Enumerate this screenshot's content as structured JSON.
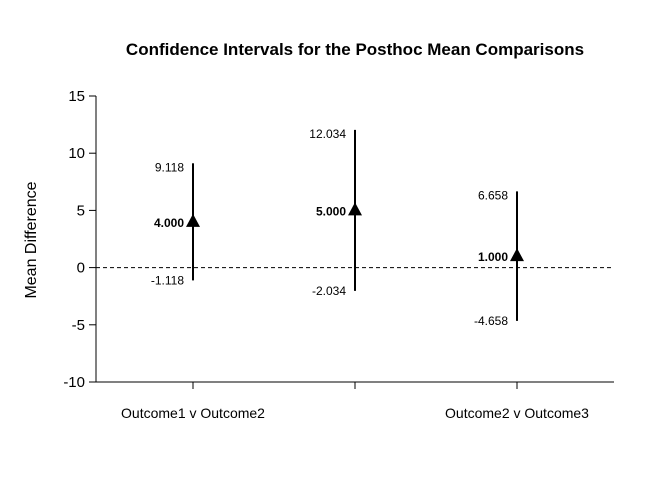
{
  "chart_data": {
    "type": "scatter",
    "title": "Confidence Intervals for the Posthoc Mean Comparisons",
    "xlabel": "",
    "ylabel": "Mean Difference",
    "ylim": [
      -10,
      15
    ],
    "yticks": [
      "15",
      "10",
      "5",
      "0",
      "-5",
      "-10"
    ],
    "grid": false,
    "reference_line": 0,
    "categories": [
      "Outcome1 v Outcome2",
      "",
      "Outcome2 v Outcome3"
    ],
    "points": [
      {
        "mean": 4.0,
        "lower": -1.118,
        "upper": 9.118,
        "mean_label": "4.000",
        "lower_label": "-1.118",
        "upper_label": "9.118"
      },
      {
        "mean": 5.0,
        "lower": -2.034,
        "upper": 12.034,
        "mean_label": "5.000",
        "lower_label": "-2.034",
        "upper_label": "12.034"
      },
      {
        "mean": 1.0,
        "lower": -4.658,
        "upper": 6.658,
        "mean_label": "1.000",
        "lower_label": "-4.658",
        "upper_label": "6.658"
      }
    ]
  }
}
